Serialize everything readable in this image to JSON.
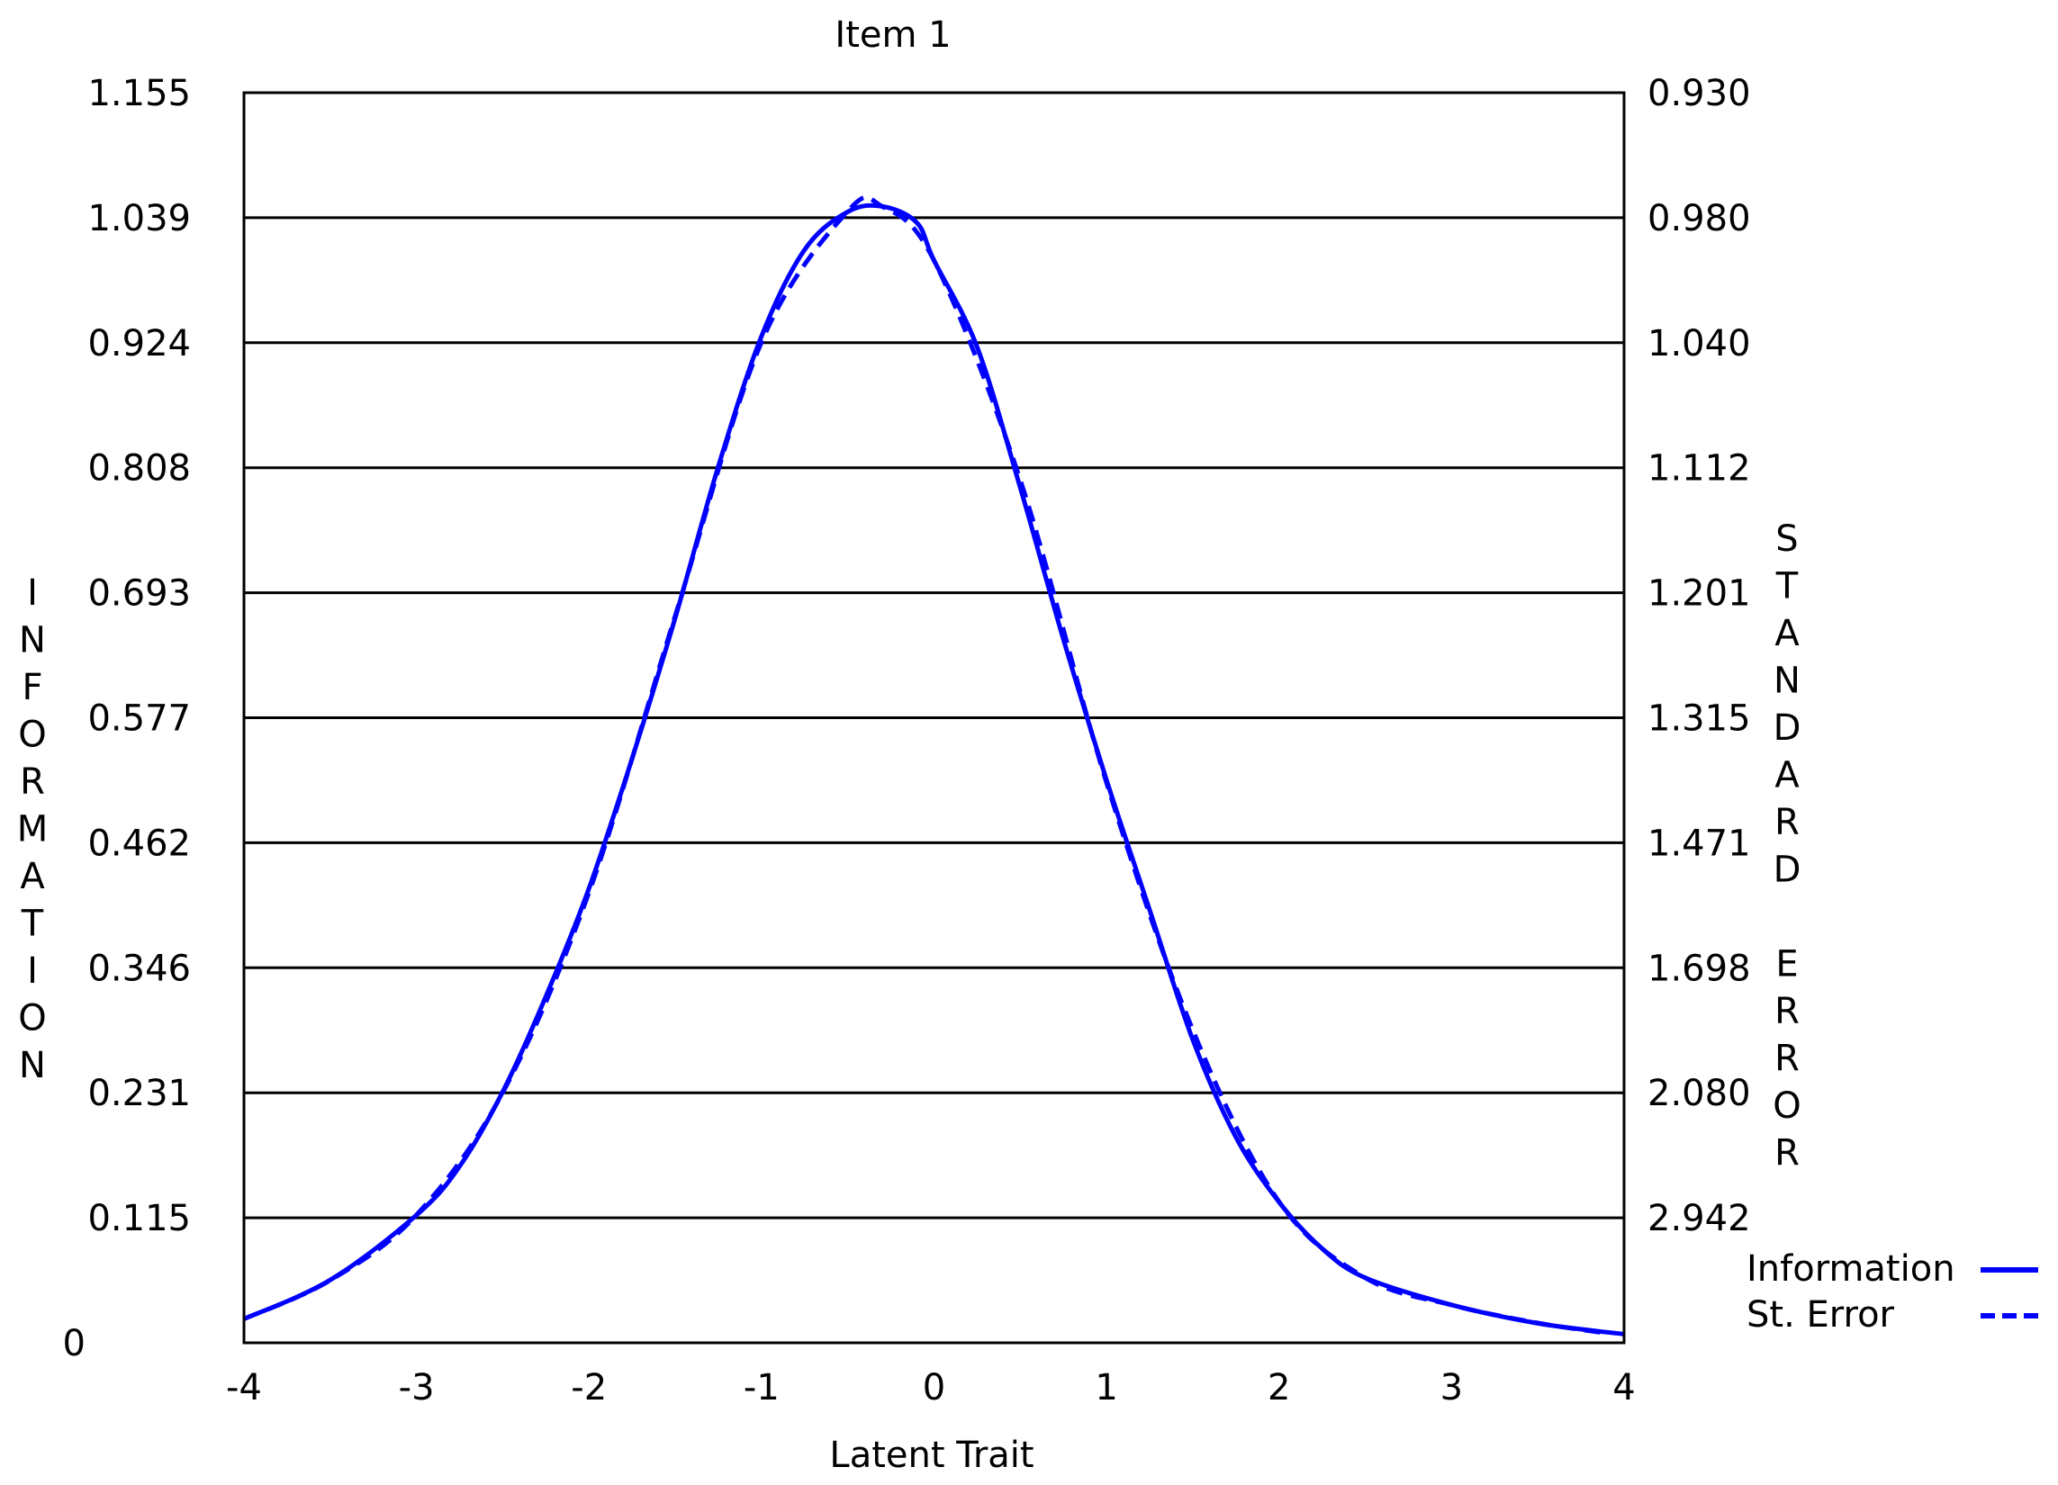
{
  "chart_data": {
    "type": "line",
    "title": "Item 1",
    "xlabel": "Latent Trait",
    "ylabel_left": "INFORMATION",
    "ylabel_right": "STANDARD ERROR",
    "xlim": [
      -4,
      4
    ],
    "x_ticks": [
      "-4",
      "-3",
      "-2",
      "-1",
      "0",
      "1",
      "2",
      "3",
      "4"
    ],
    "ylim_left": [
      0,
      1.155
    ],
    "y_ticks_left": [
      "0",
      "0.115",
      "0.231",
      "0.346",
      "0.462",
      "0.577",
      "0.693",
      "0.808",
      "0.924",
      "1.039",
      "1.155"
    ],
    "y_ticks_right": [
      "2.942",
      "2.080",
      "1.698",
      "1.471",
      "1.315",
      "1.201",
      "1.112",
      "1.040",
      "0.980",
      "0.930"
    ],
    "grid": true,
    "legend_position": "bottom-right",
    "series": [
      {
        "name": "Information",
        "style": "solid",
        "color": "#0000ff",
        "x": [
          -4.0,
          -3.5,
          -3.0,
          -2.75,
          -2.5,
          -2.25,
          -2.0,
          -1.75,
          -1.5,
          -1.25,
          -1.0,
          -0.75,
          -0.5,
          -0.3,
          -0.1,
          0.0,
          0.25,
          0.5,
          0.75,
          1.0,
          1.25,
          1.5,
          1.75,
          2.0,
          2.25,
          2.5,
          3.0,
          3.5,
          4.0
        ],
        "values": [
          0.022,
          0.058,
          0.118,
          0.163,
          0.232,
          0.32,
          0.42,
          0.54,
          0.67,
          0.81,
          0.93,
          1.01,
          1.045,
          1.05,
          1.035,
          1.0,
          0.92,
          0.79,
          0.65,
          0.52,
          0.4,
          0.28,
          0.19,
          0.13,
          0.087,
          0.06,
          0.035,
          0.018,
          0.008
        ]
      },
      {
        "name": "St. Error",
        "style": "dashed",
        "color": "#0000ff",
        "x": [
          -4.0,
          -3.5,
          -3.0,
          -2.5,
          -2.0,
          -1.5,
          -1.0,
          -0.5,
          -0.3,
          0.0,
          0.5,
          1.0,
          1.5,
          2.0,
          2.5,
          3.0,
          3.5,
          3.9
        ],
        "values": [
          6.74,
          4.16,
          2.91,
          2.08,
          1.55,
          1.22,
          1.04,
          0.978,
          0.976,
          1.0,
          1.12,
          1.39,
          1.86,
          2.77,
          4.08,
          5.35,
          7.39,
          10.67
        ]
      }
    ]
  },
  "legend": {
    "items": [
      {
        "label": "Information",
        "style": "solid"
      },
      {
        "label": "St. Error",
        "style": "dashed"
      }
    ]
  }
}
